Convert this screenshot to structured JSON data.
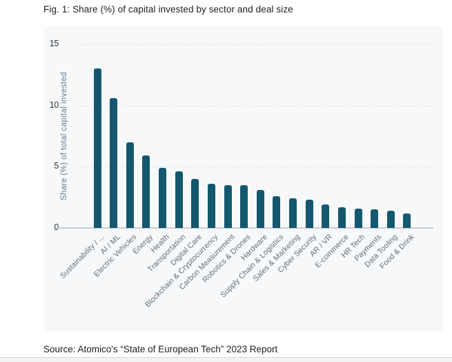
{
  "figure": {
    "title": "Fig. 1: Share (%) of capital invested by sector and deal size",
    "source": "Source: Atomico's “State of European Tech” 2023 Report"
  },
  "chart_data": {
    "type": "bar",
    "title": "Share (%) of capital invested by sector and deal size",
    "categories": [
      "Sustainability / ...",
      "AI / ML",
      "Electric Vehicles",
      "Energy",
      "Health",
      "Transportation",
      "Digital Care",
      "Blockchain & Cryptocurrency",
      "Carbon Measurement",
      "Robotics & Drones",
      "Hardware",
      "Supply Chain & Logistics",
      "Sales & Marketing",
      "Cyber Security",
      "AR / VR",
      "E-commerce",
      "HR Tech",
      "Payments",
      "Data Tooling",
      "Food & Drink"
    ],
    "values": [
      13.0,
      10.6,
      7.0,
      5.9,
      4.9,
      4.6,
      4.0,
      3.6,
      3.5,
      3.5,
      3.1,
      2.6,
      2.4,
      2.3,
      1.9,
      1.7,
      1.6,
      1.5,
      1.4,
      1.2
    ],
    "xlabel": "",
    "ylabel": "Share (%) of total capital invested",
    "ylim": [
      0,
      15
    ],
    "yticks": [
      0,
      5,
      10,
      15
    ],
    "grid": "horizontal-dashed",
    "legend": "none",
    "bar_color": "#13586e",
    "panel_bg": "#f7f8f9"
  }
}
